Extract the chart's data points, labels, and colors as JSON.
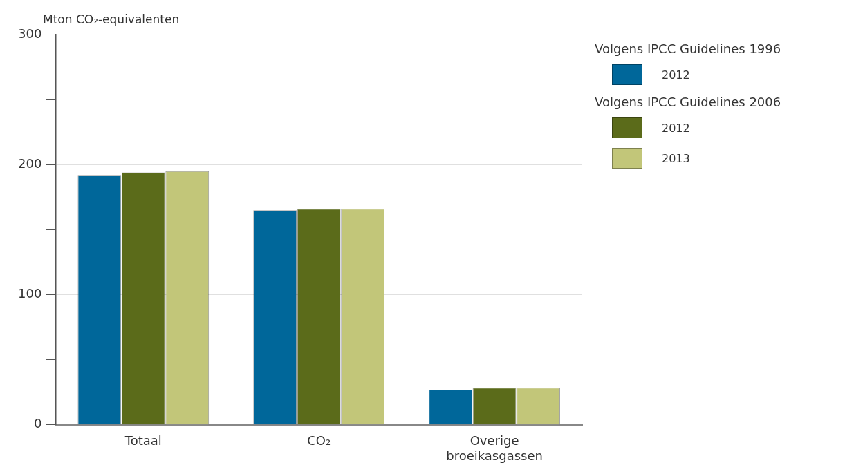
{
  "chart_data": {
    "type": "bar",
    "ylabel": "Mton CO₂-equivalenten",
    "categories": [
      "Totaal",
      "CO₂",
      "Overige broeikasgassen"
    ],
    "series": [
      {
        "name": "2012",
        "color": "#00679a",
        "values": [
          192,
          165,
          27
        ]
      },
      {
        "name": "2012",
        "color": "#5b6b1a",
        "values": [
          194,
          166,
          28.5
        ]
      },
      {
        "name": "2013",
        "color": "#c2c679",
        "values": [
          195,
          166,
          28.5
        ]
      }
    ],
    "ylim": [
      0,
      300
    ],
    "yticks": [
      0,
      {
        "value": 50,
        "label": null
      },
      100,
      {
        "value": 150,
        "label": null
      },
      200,
      {
        "value": 250,
        "label": null
      },
      300
    ],
    "grid": "y",
    "legend": "right",
    "annotations": [
      "Volgens IPCC Guidelines 1996",
      "Volgens IPCC Guidelines 2006"
    ]
  }
}
